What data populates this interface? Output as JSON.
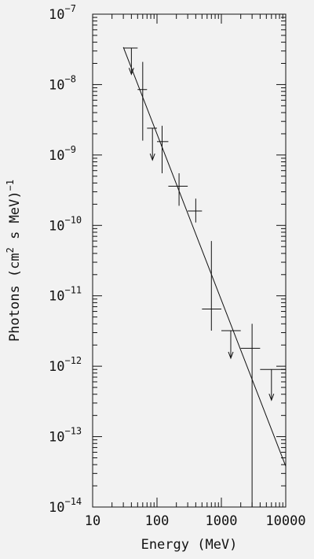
{
  "chart_data": {
    "type": "scatter",
    "title": "",
    "xlabel": "Energy (MeV)",
    "ylabel": {
      "prefix": "Photons (cm",
      "sup": "2",
      "middle": " s MeV)",
      "sup2": "−1"
    },
    "x_scale": "log",
    "y_scale": "log",
    "xlim": [
      10,
      10000
    ],
    "ylim": [
      1e-14,
      1e-07
    ],
    "grid": false,
    "x_tick_labels": [
      {
        "value": 10,
        "label": "10"
      },
      {
        "value": 100,
        "label": "100"
      },
      {
        "value": 1000,
        "label": "1000"
      },
      {
        "value": 10000,
        "label": "10000"
      }
    ],
    "y_tick_labels": [
      {
        "value": 1e-07,
        "base": "10",
        "exp": "−7"
      },
      {
        "value": 1e-08,
        "base": "10",
        "exp": "−8"
      },
      {
        "value": 1e-09,
        "base": "10",
        "exp": "−9"
      },
      {
        "value": 1e-10,
        "base": "10",
        "exp": "−10"
      },
      {
        "value": 1e-11,
        "base": "10",
        "exp": "−11"
      },
      {
        "value": 1e-12,
        "base": "10",
        "exp": "−12"
      },
      {
        "value": 1e-13,
        "base": "10",
        "exp": "−13"
      },
      {
        "value": 1e-14,
        "base": "10",
        "exp": "−14"
      }
    ],
    "series": [
      {
        "points": [
          {
            "x": 60,
            "x_low": 50,
            "x_high": 70,
            "y": 8.5e-09,
            "y_low": 1.6e-09,
            "y_high": 2.1e-08
          },
          {
            "x": 120,
            "x_low": 100,
            "x_high": 150,
            "y": 1.55e-09,
            "y_low": 5.5e-10,
            "y_high": 2.6e-09
          },
          {
            "x": 220,
            "x_low": 150,
            "x_high": 300,
            "y": 3.6e-10,
            "y_low": 1.9e-10,
            "y_high": 5.5e-10
          },
          {
            "x": 400,
            "x_low": 300,
            "x_high": 500,
            "y": 1.6e-10,
            "y_low": 1.1e-10,
            "y_high": 2.4e-10
          },
          {
            "x": 700,
            "x_low": 500,
            "x_high": 1000,
            "y": 6.5e-12,
            "y_low": 3.2e-12,
            "y_high": 6e-11
          },
          {
            "x": 3000,
            "x_low": 2000,
            "x_high": 4000,
            "y": 1.8e-12,
            "y_low": 1e-14,
            "y_high": 4e-12
          }
        ]
      },
      {
        "kind": "upper_limit",
        "points": [
          {
            "x": 40,
            "x_low": 30,
            "x_high": 50,
            "y": 3.3e-08,
            "y_arrow_to": 1.4e-08
          },
          {
            "x": 85,
            "x_low": 70,
            "x_high": 100,
            "y": 2.4e-09,
            "y_arrow_to": 8.5e-10
          },
          {
            "x": 1400,
            "x_low": 1000,
            "x_high": 2000,
            "y": 3.2e-12,
            "y_arrow_to": 1.3e-12
          },
          {
            "x": 6000,
            "x_low": 4000,
            "x_high": 10000,
            "y": 9e-13,
            "y_arrow_to": 3.3e-13
          }
        ]
      },
      {
        "kind": "fit_line",
        "points": [
          {
            "x": 30,
            "y": 3.4e-08
          },
          {
            "x": 10000,
            "y": 3.8e-14
          }
        ]
      }
    ]
  }
}
